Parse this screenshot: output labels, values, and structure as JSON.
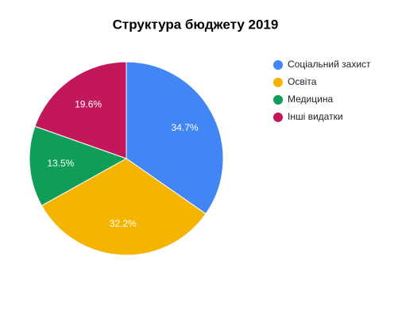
{
  "chart_data": {
    "type": "pie",
    "title": "Структура бюджету 2019",
    "categories": [
      "Соціальний захист",
      "Освіта",
      "Медицина",
      "Інші видатки"
    ],
    "values": [
      34.7,
      32.2,
      13.5,
      19.6
    ],
    "value_labels": [
      "34.7%",
      "32.2%",
      "13.5%",
      "19.6%"
    ],
    "colors": [
      "#4285f4",
      "#f4b400",
      "#0f9d58",
      "#c2185b"
    ],
    "legend": "right"
  }
}
